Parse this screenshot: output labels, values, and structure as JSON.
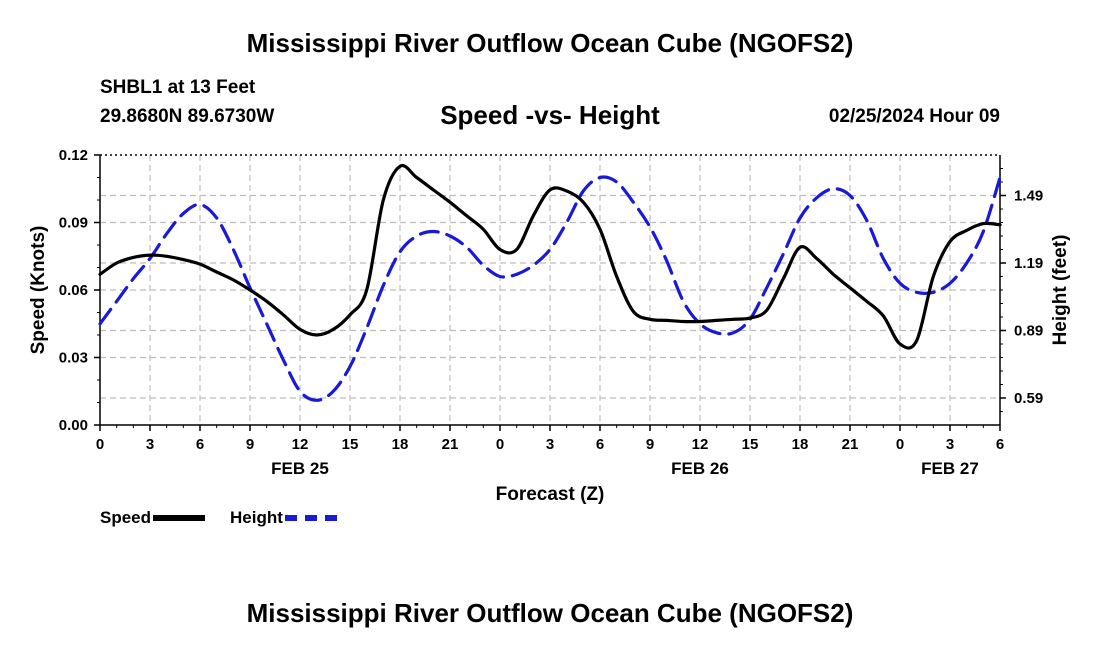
{
  "header": {
    "title": "Mississippi River Outflow Ocean Cube (NGOFS2)",
    "station": "SHBL1 at 13 Feet",
    "coords": "29.8680N  89.6730W",
    "date": "02/25/2024 Hour 09"
  },
  "footer": {
    "title": "Mississippi River Outflow Ocean Cube (NGOFS2)"
  },
  "legend": {
    "speed_label": "Speed",
    "height_label": "Height"
  },
  "chart_data": {
    "type": "line",
    "title": "Speed -vs- Height",
    "xlabel": "Forecast (Z)",
    "ylabel_left": "Speed (Knots)",
    "ylabel_right": "Height (feet)",
    "x_range_hours": [
      0,
      54
    ],
    "x_ticks": [
      {
        "h": 0,
        "label": "0"
      },
      {
        "h": 3,
        "label": "3"
      },
      {
        "h": 6,
        "label": "6"
      },
      {
        "h": 9,
        "label": "9"
      },
      {
        "h": 12,
        "label": "12"
      },
      {
        "h": 15,
        "label": "15"
      },
      {
        "h": 18,
        "label": "18"
      },
      {
        "h": 21,
        "label": "21"
      },
      {
        "h": 24,
        "label": "0"
      },
      {
        "h": 27,
        "label": "3"
      },
      {
        "h": 30,
        "label": "6"
      },
      {
        "h": 33,
        "label": "9"
      },
      {
        "h": 36,
        "label": "12"
      },
      {
        "h": 39,
        "label": "15"
      },
      {
        "h": 42,
        "label": "18"
      },
      {
        "h": 45,
        "label": "21"
      },
      {
        "h": 48,
        "label": "0"
      },
      {
        "h": 51,
        "label": "3"
      },
      {
        "h": 54,
        "label": "6"
      }
    ],
    "day_labels": [
      {
        "h": 12,
        "label": "FEB 25"
      },
      {
        "h": 36,
        "label": "FEB 26"
      },
      {
        "h": 51,
        "label": "FEB 27"
      }
    ],
    "y_left": {
      "range": [
        0,
        0.12
      ],
      "ticks": [
        {
          "v": 0,
          "label": "0.00"
        },
        {
          "v": 0.03,
          "label": "0.03"
        },
        {
          "v": 0.06,
          "label": "0.06"
        },
        {
          "v": 0.09,
          "label": "0.09"
        },
        {
          "v": 0.12,
          "label": "0.12"
        }
      ]
    },
    "y_right": {
      "range": [
        0.47,
        1.67
      ],
      "ticks": [
        {
          "v": 0.59,
          "label": "0.59"
        },
        {
          "v": 0.89,
          "label": "0.89"
        },
        {
          "v": 1.19,
          "label": "1.19"
        },
        {
          "v": 1.49,
          "label": "1.49"
        }
      ]
    },
    "series": [
      {
        "name": "Speed",
        "axis": "left",
        "color": "#000000",
        "style": "solid",
        "points": [
          [
            0,
            0.067
          ],
          [
            1,
            0.072
          ],
          [
            2,
            0.0745
          ],
          [
            3,
            0.0755
          ],
          [
            4,
            0.075
          ],
          [
            5,
            0.0735
          ],
          [
            6,
            0.0715
          ],
          [
            7,
            0.068
          ],
          [
            8,
            0.0645
          ],
          [
            9,
            0.06
          ],
          [
            10,
            0.055
          ],
          [
            11,
            0.049
          ],
          [
            12,
            0.0425
          ],
          [
            13,
            0.04
          ],
          [
            14,
            0.0425
          ],
          [
            15,
            0.049
          ],
          [
            16,
            0.06
          ],
          [
            17,
            0.1
          ],
          [
            18,
            0.115
          ],
          [
            19,
            0.11
          ],
          [
            20,
            0.1045
          ],
          [
            21,
            0.099
          ],
          [
            22,
            0.093
          ],
          [
            23,
            0.087
          ],
          [
            24,
            0.078
          ],
          [
            25,
            0.078
          ],
          [
            26,
            0.093
          ],
          [
            27,
            0.1045
          ],
          [
            28,
            0.104
          ],
          [
            29,
            0.099
          ],
          [
            30,
            0.087
          ],
          [
            31,
            0.066
          ],
          [
            32,
            0.0505
          ],
          [
            33,
            0.047
          ],
          [
            34,
            0.0465
          ],
          [
            35,
            0.046
          ],
          [
            36,
            0.046
          ],
          [
            37,
            0.0465
          ],
          [
            38,
            0.047
          ],
          [
            39,
            0.0475
          ],
          [
            40,
            0.051
          ],
          [
            41,
            0.065
          ],
          [
            42,
            0.079
          ],
          [
            43,
            0.074
          ],
          [
            44,
            0.067
          ],
          [
            45,
            0.061
          ],
          [
            46,
            0.055
          ],
          [
            47,
            0.0485
          ],
          [
            48,
            0.036
          ],
          [
            49,
            0.0375
          ],
          [
            50,
            0.066
          ],
          [
            51,
            0.0815
          ],
          [
            52,
            0.0865
          ],
          [
            53,
            0.0895
          ],
          [
            54,
            0.089
          ]
        ]
      },
      {
        "name": "Height",
        "axis": "right",
        "color": "#1a1ad6",
        "style": "dashed",
        "points": [
          [
            0,
            0.92
          ],
          [
            1,
            1.02
          ],
          [
            2,
            1.12
          ],
          [
            3,
            1.21
          ],
          [
            4,
            1.32
          ],
          [
            5,
            1.41
          ],
          [
            6,
            1.45
          ],
          [
            7,
            1.39
          ],
          [
            8,
            1.25
          ],
          [
            9,
            1.08
          ],
          [
            10,
            0.92
          ],
          [
            11,
            0.76
          ],
          [
            12,
            0.62
          ],
          [
            13,
            0.58
          ],
          [
            14,
            0.62
          ],
          [
            15,
            0.73
          ],
          [
            16,
            0.9
          ],
          [
            17,
            1.09
          ],
          [
            18,
            1.24
          ],
          [
            19,
            1.31
          ],
          [
            20,
            1.33
          ],
          [
            21,
            1.31
          ],
          [
            22,
            1.26
          ],
          [
            23,
            1.18
          ],
          [
            24,
            1.13
          ],
          [
            25,
            1.14
          ],
          [
            26,
            1.18
          ],
          [
            27,
            1.25
          ],
          [
            28,
            1.37
          ],
          [
            29,
            1.51
          ],
          [
            30,
            1.57
          ],
          [
            31,
            1.55
          ],
          [
            32,
            1.46
          ],
          [
            33,
            1.35
          ],
          [
            34,
            1.2
          ],
          [
            35,
            1.02
          ],
          [
            36,
            0.92
          ],
          [
            37,
            0.88
          ],
          [
            38,
            0.88
          ],
          [
            39,
            0.94
          ],
          [
            40,
            1.08
          ],
          [
            41,
            1.23
          ],
          [
            42,
            1.39
          ],
          [
            43,
            1.48
          ],
          [
            44,
            1.52
          ],
          [
            45,
            1.49
          ],
          [
            46,
            1.38
          ],
          [
            47,
            1.21
          ],
          [
            48,
            1.1
          ],
          [
            49,
            1.06
          ],
          [
            50,
            1.06
          ],
          [
            51,
            1.1
          ],
          [
            52,
            1.19
          ],
          [
            53,
            1.33
          ],
          [
            54,
            1.57
          ]
        ]
      }
    ]
  }
}
